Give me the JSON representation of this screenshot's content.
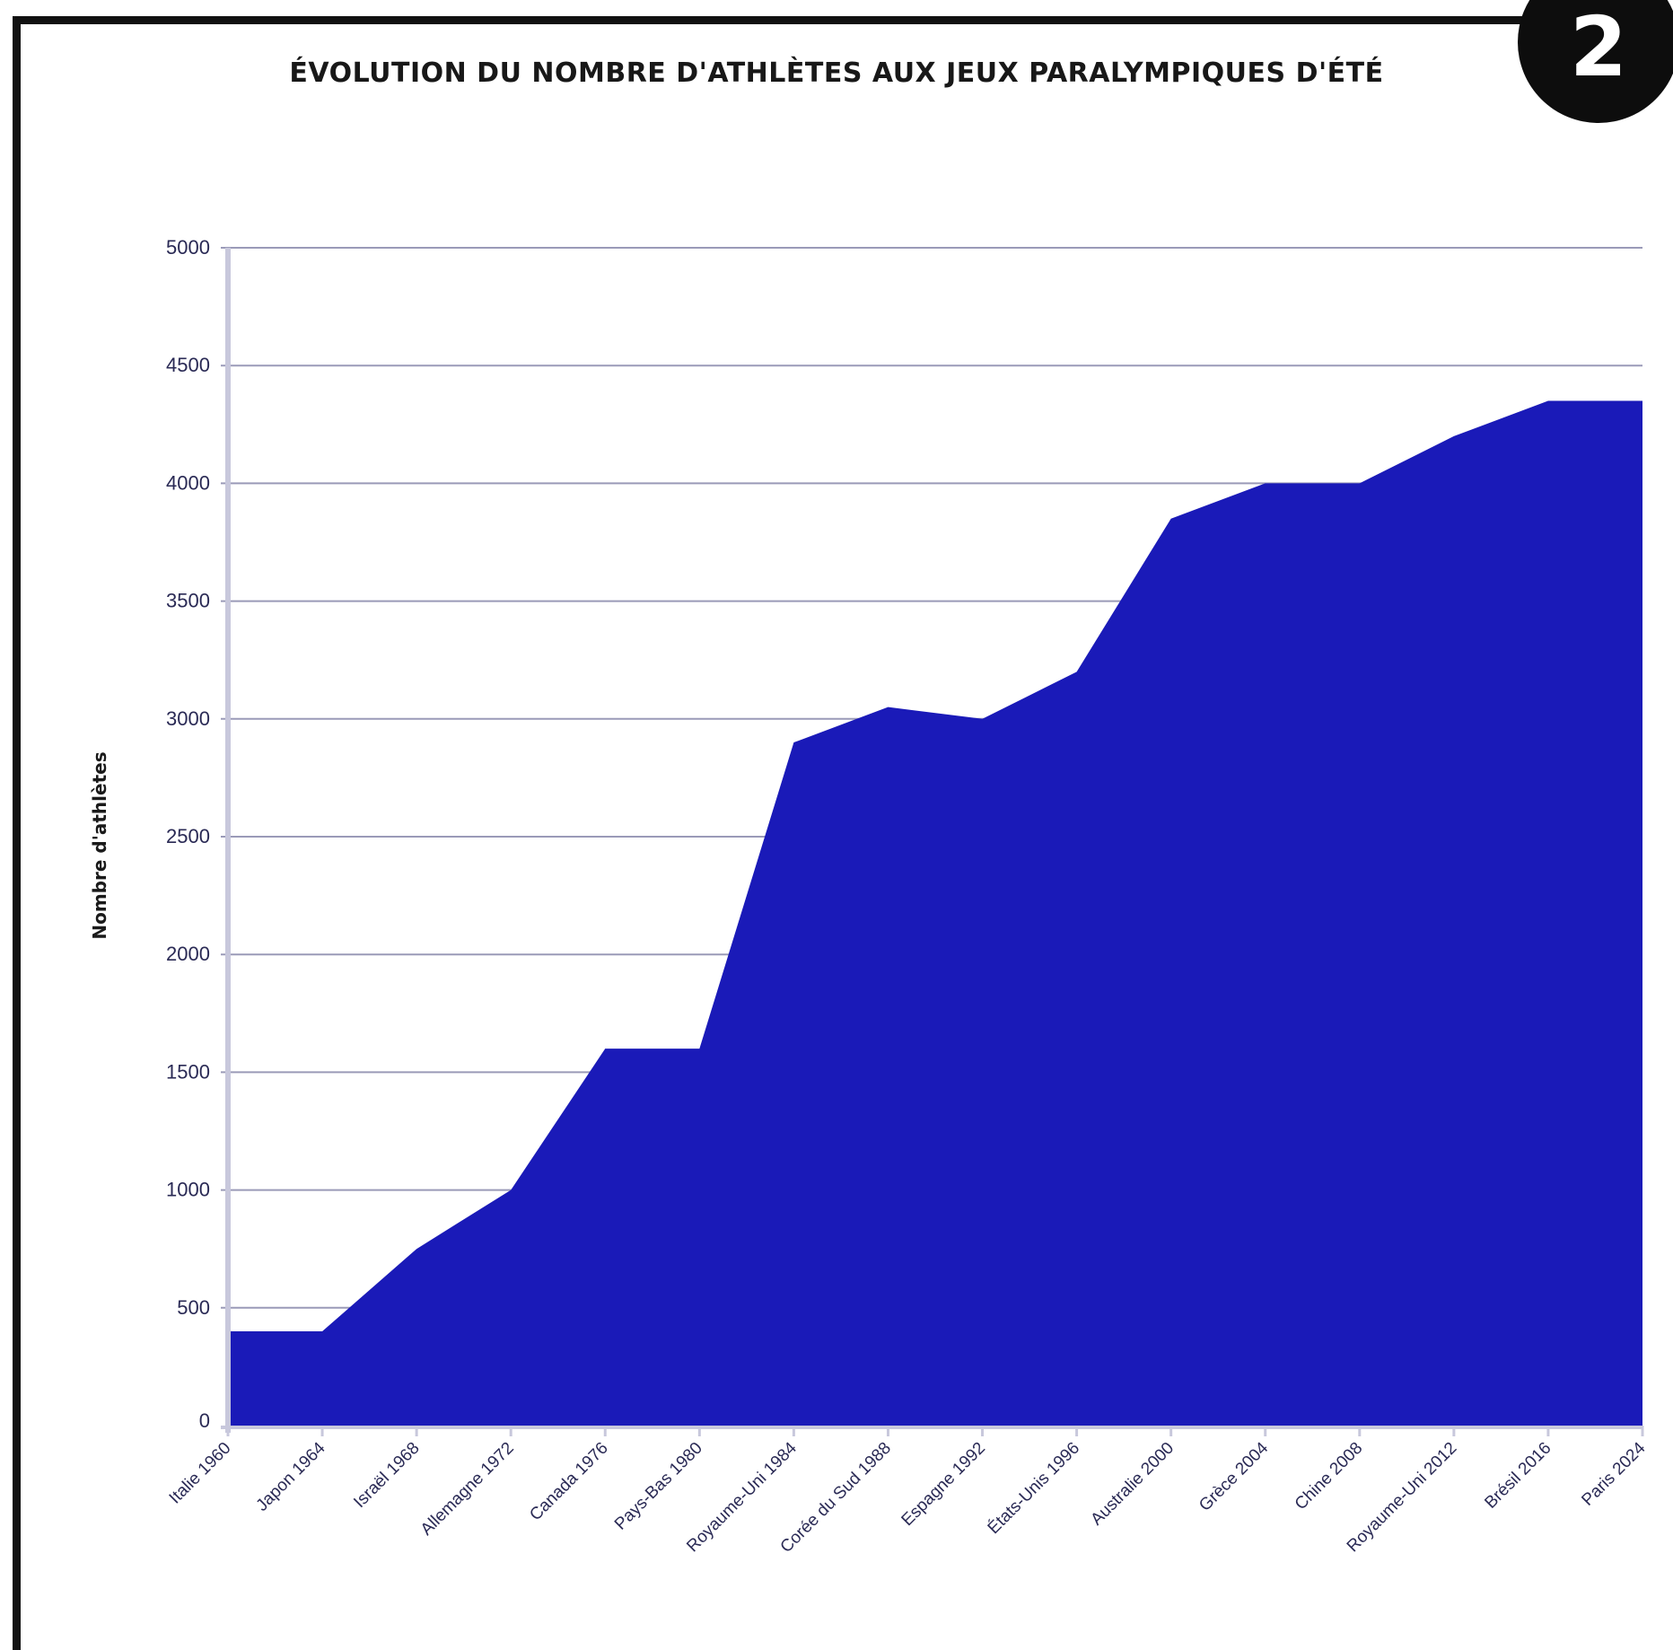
{
  "badge": "2",
  "chart_data": {
    "type": "area",
    "title": "ÉVOLUTION DU NOMBRE D'ATHLÈTES AUX JEUX PARALYMPIQUES D'ÉTÉ",
    "xlabel": "",
    "ylabel": "Nombre d'athlètes",
    "ylim": [
      0,
      5000
    ],
    "yticks": [
      "0",
      "500",
      "1000",
      "1500",
      "2000",
      "2500",
      "3000",
      "3500",
      "4000",
      "4500",
      "5000"
    ],
    "grid": true,
    "categories": [
      "Italie 1960",
      "Japon 1964",
      "Israël 1968",
      "Allemagne 1972",
      "Canada 1976",
      "Pays-Bas 1980",
      "Royaume-Uni 1984",
      "Corée du Sud 1988",
      "Espagne 1992",
      "États-Unis 1996",
      "Australie 2000",
      "Grèce 2004",
      "Chine 2008",
      "Royaume-Uni 2012",
      "Brésil 2016",
      "Paris 2024"
    ],
    "values": [
      400,
      400,
      750,
      1000,
      1600,
      1600,
      2900,
      3050,
      3000,
      3200,
      3850,
      4000,
      4000,
      4200,
      4350,
      4350
    ],
    "colors": {
      "fill": "#1a1ab8",
      "grid": "#9a9ab8",
      "axis": "#c8c8dc"
    }
  }
}
